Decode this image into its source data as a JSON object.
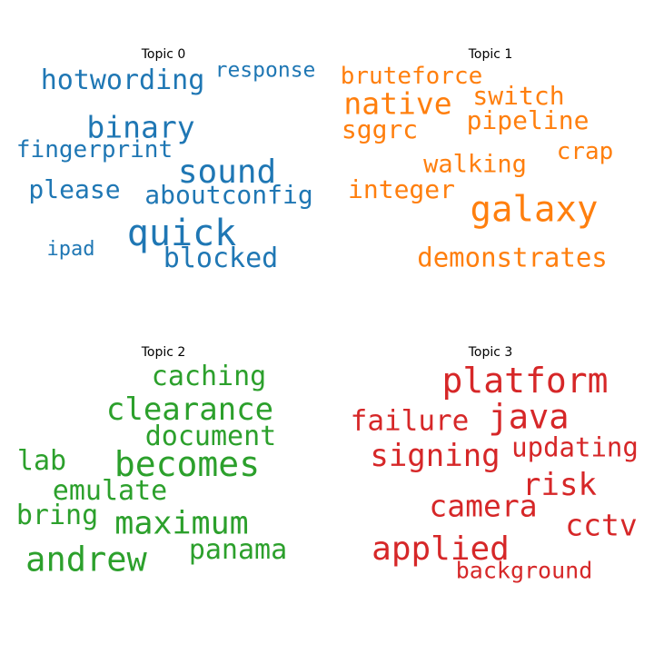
{
  "chart_data": {
    "type": "wordcloud",
    "panels": [
      {
        "title": "Topic 0",
        "color": "#1f77b4",
        "words": [
          "hotwording",
          "response",
          "binary",
          "fingerprint",
          "sound",
          "please",
          "aboutconfig",
          "quick",
          "ipad",
          "blocked"
        ]
      },
      {
        "title": "Topic 1",
        "color": "#ff7f0e",
        "words": [
          "bruteforce",
          "native",
          "switch",
          "pipeline",
          "sggrc",
          "crap",
          "walking",
          "integer",
          "galaxy",
          "demonstrates"
        ]
      },
      {
        "title": "Topic 2",
        "color": "#2ca02c",
        "words": [
          "caching",
          "clearance",
          "document",
          "lab",
          "becomes",
          "emulate",
          "bring",
          "maximum",
          "panama",
          "andrew"
        ]
      },
      {
        "title": "Topic 3",
        "color": "#d62728",
        "words": [
          "platform",
          "failure",
          "java",
          "signing",
          "updating",
          "risk",
          "camera",
          "cctv",
          "applied",
          "background"
        ]
      }
    ]
  }
}
